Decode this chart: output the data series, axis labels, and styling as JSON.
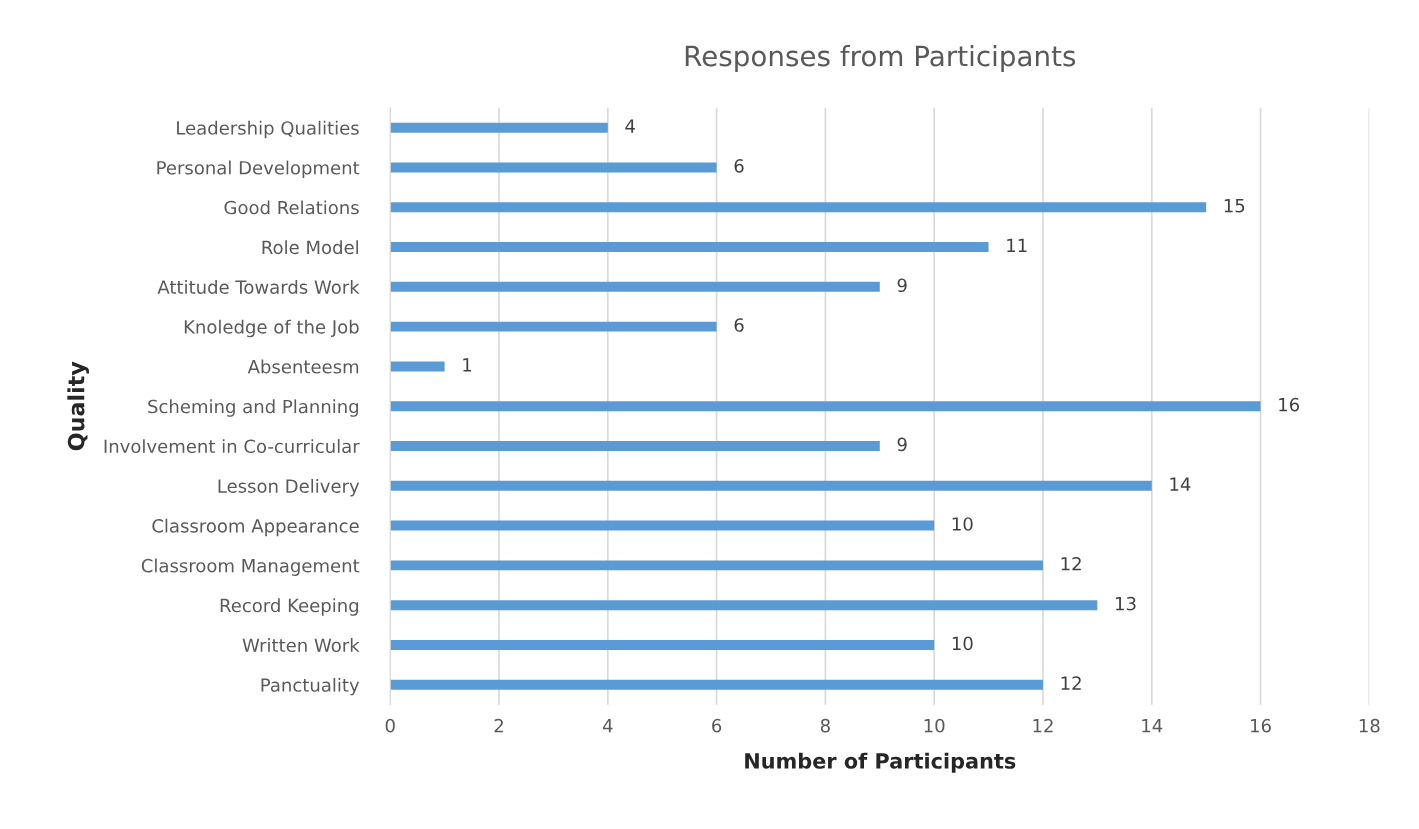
{
  "chart_data": {
    "type": "bar",
    "orientation": "horizontal",
    "title": "Responses from Participants",
    "xlabel": "Number of Participants",
    "ylabel": "Quality",
    "categories": [
      "Leadership Qualities",
      "Personal Development",
      "Good Relations",
      "Role Model",
      "Attitude Towards Work",
      "Knoledge of the Job",
      "Absenteesm",
      "Scheming and Planning",
      "Involvement in Co-curricular",
      "Lesson Delivery",
      "Classroom Appearance",
      "Classroom Management",
      "Record Keeping",
      "Written Work",
      "Panctuality"
    ],
    "values": [
      4,
      6,
      15,
      11,
      9,
      6,
      1,
      16,
      9,
      14,
      10,
      12,
      13,
      10,
      12
    ],
    "color": "#5b9bd5",
    "xlim": [
      0,
      18
    ],
    "xticks": [
      0,
      2,
      4,
      6,
      8,
      10,
      12,
      14,
      16,
      18
    ],
    "grid": "x",
    "data_labels": true,
    "legend": false
  }
}
